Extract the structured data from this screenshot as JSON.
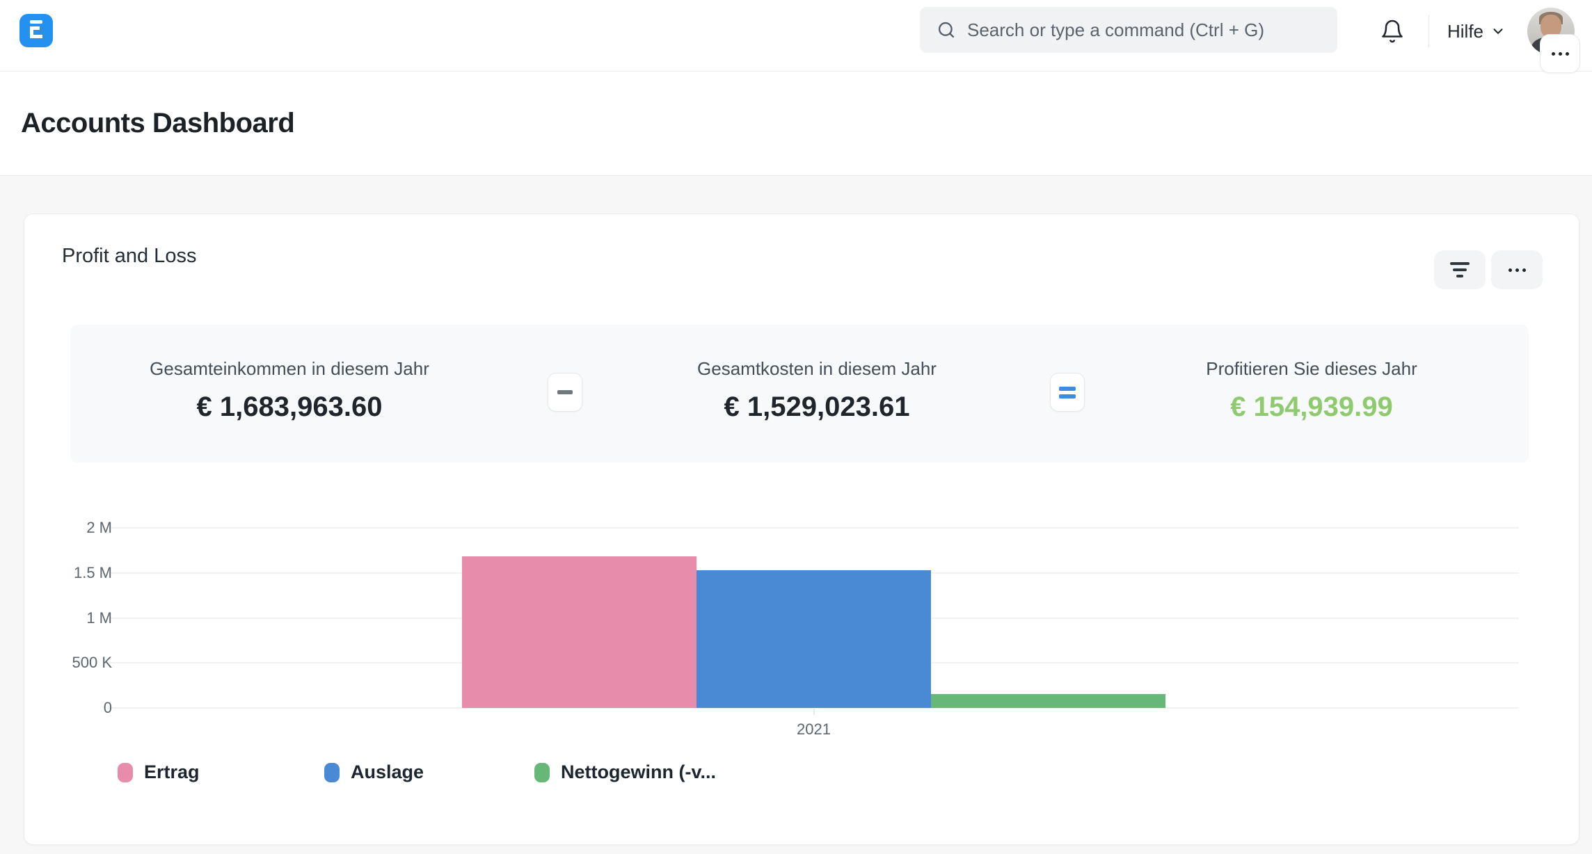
{
  "navbar": {
    "search_placeholder": "Search or type a command (Ctrl + G)",
    "help_label": "Hilfe"
  },
  "page": {
    "title": "Accounts Dashboard"
  },
  "card": {
    "title": "Profit and Loss",
    "stats": [
      {
        "label": "Gesamteinkommen in diesem Jahr",
        "value": "€ 1,683,963.60",
        "value_color": "#1f252b"
      },
      {
        "label": "Gesamtkosten in diesem Jahr",
        "value": "€ 1,529,023.61",
        "value_color": "#1f252b"
      },
      {
        "label": "Profitieren Sie dieses Jahr",
        "value": "€ 154,939.99",
        "value_color": "#8fca6f"
      }
    ],
    "operators": [
      "minus",
      "equals"
    ]
  },
  "chart_data": {
    "type": "bar",
    "title": "Profit and Loss",
    "categories": [
      "2021"
    ],
    "series": [
      {
        "name": "Ertrag",
        "values": [
          1683963.6
        ],
        "color": "#e88cac"
      },
      {
        "name": "Auslage",
        "values": [
          1529023.61
        ],
        "color": "#4a8ad4"
      },
      {
        "name": "Nettogewinn (-v...",
        "values": [
          154939.99
        ],
        "color": "#66b778"
      }
    ],
    "ylim": [
      0,
      2000000
    ],
    "yticks": [
      {
        "label": "2 M",
        "value": 2000000
      },
      {
        "label": "1.5 M",
        "value": 1500000
      },
      {
        "label": "1 M",
        "value": 1000000
      },
      {
        "label": "500 K",
        "value": 500000
      },
      {
        "label": "0",
        "value": 0
      }
    ],
    "grid": true,
    "legend_position": "bottom"
  },
  "colors": {
    "brand_blue": "#2490ef",
    "profit_green": "#8fca6f"
  }
}
